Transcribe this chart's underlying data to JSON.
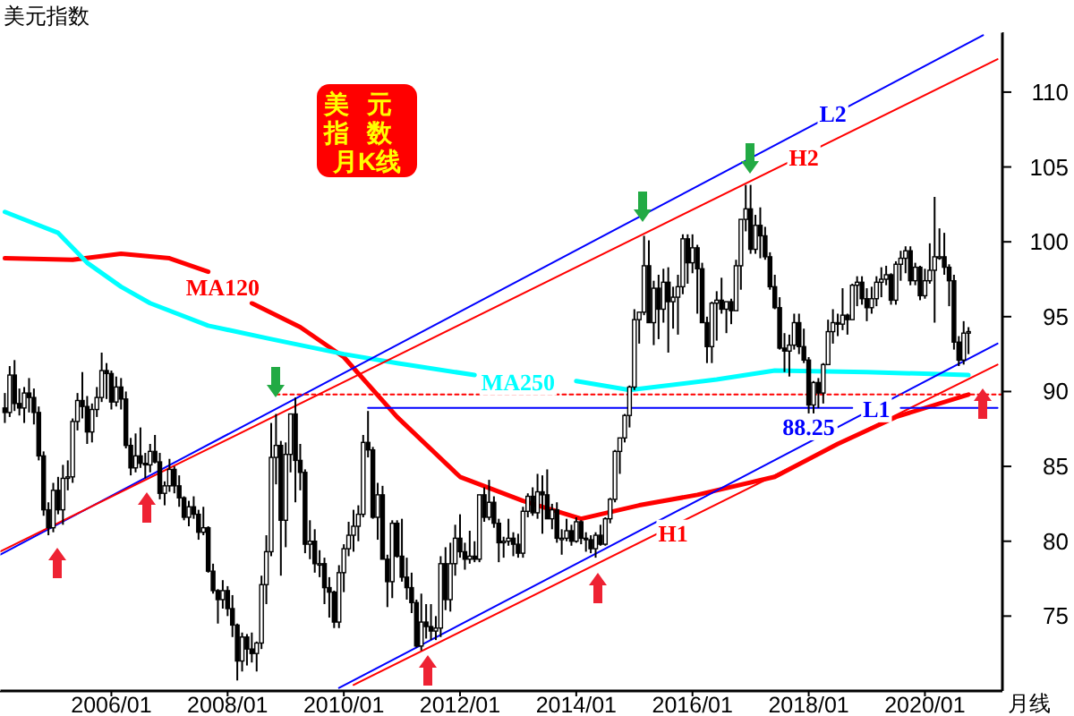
{
  "chart_data": {
    "type": "candlestick",
    "title": "美元指数",
    "annotations": [
      "美元",
      "指数",
      "月K线",
      "月线",
      {
        "text": "L2",
        "x": "2018-06",
        "y": 108.6
      },
      {
        "text": "H2",
        "x": "2017-12",
        "y": 105.7
      },
      {
        "text": "H1",
        "x": "2015-09",
        "y": 80.6
      },
      {
        "text": "L1",
        "x": "2019-03",
        "y": 88.9
      },
      {
        "text": "88.25",
        "x": "2018-01",
        "y": 87.7
      },
      {
        "text": "MA120",
        "x": "2007-12",
        "y": 97.0
      },
      {
        "text": "MA250",
        "x": "2013-01",
        "y": 90.7
      }
    ],
    "xlim": [
      "2004-02",
      "2021-05"
    ],
    "xticks": [
      {
        "value": "2006-01",
        "label": "2006/01"
      },
      {
        "value": "2008-01",
        "label": "2008/01"
      },
      {
        "value": "2010-01",
        "label": "2010/01"
      },
      {
        "value": "2012-01",
        "label": "2012/01"
      },
      {
        "value": "2014-01",
        "label": "2014/01"
      },
      {
        "value": "2016-01",
        "label": "2016/01"
      },
      {
        "value": "2018-01",
        "label": "2018/01"
      },
      {
        "value": "2020-01",
        "label": "2020/01"
      }
    ],
    "ylim": [
      70,
      114
    ],
    "yticks": [
      75,
      80,
      85,
      90,
      95,
      100,
      105,
      110
    ],
    "x": [
      "2004-03",
      "2004-04",
      "2004-05",
      "2004-06",
      "2004-07",
      "2004-08",
      "2004-09",
      "2004-10",
      "2004-11",
      "2004-12",
      "2005-01",
      "2005-02",
      "2005-03",
      "2005-04",
      "2005-05",
      "2005-06",
      "2005-07",
      "2005-08",
      "2005-09",
      "2005-10",
      "2005-11",
      "2005-12",
      "2006-01",
      "2006-02",
      "2006-03",
      "2006-04",
      "2006-05",
      "2006-06",
      "2006-07",
      "2006-08",
      "2006-09",
      "2006-10",
      "2006-11",
      "2006-12",
      "2007-01",
      "2007-02",
      "2007-03",
      "2007-04",
      "2007-05",
      "2007-06",
      "2007-07",
      "2007-08",
      "2007-09",
      "2007-10",
      "2007-11",
      "2007-12",
      "2008-01",
      "2008-02",
      "2008-03",
      "2008-04",
      "2008-05",
      "2008-06",
      "2008-07",
      "2008-08",
      "2008-09",
      "2008-10",
      "2008-11",
      "2008-12",
      "2009-01",
      "2009-02",
      "2009-03",
      "2009-04",
      "2009-05",
      "2009-06",
      "2009-07",
      "2009-08",
      "2009-09",
      "2009-10",
      "2009-11",
      "2009-12",
      "2010-01",
      "2010-02",
      "2010-03",
      "2010-04",
      "2010-05",
      "2010-06",
      "2010-07",
      "2010-08",
      "2010-09",
      "2010-10",
      "2010-11",
      "2010-12",
      "2011-01",
      "2011-02",
      "2011-03",
      "2011-04",
      "2011-05",
      "2011-06",
      "2011-07",
      "2011-08",
      "2011-09",
      "2011-10",
      "2011-11",
      "2011-12",
      "2012-01",
      "2012-02",
      "2012-03",
      "2012-04",
      "2012-05",
      "2012-06",
      "2012-07",
      "2012-08",
      "2012-09",
      "2012-10",
      "2012-11",
      "2012-12",
      "2013-01",
      "2013-02",
      "2013-03",
      "2013-04",
      "2013-05",
      "2013-06",
      "2013-07",
      "2013-08",
      "2013-09",
      "2013-10",
      "2013-11",
      "2013-12",
      "2014-01",
      "2014-02",
      "2014-03",
      "2014-04",
      "2014-05",
      "2014-06",
      "2014-07",
      "2014-08",
      "2014-09",
      "2014-10",
      "2014-11",
      "2014-12",
      "2015-01",
      "2015-02",
      "2015-03",
      "2015-04",
      "2015-05",
      "2015-06",
      "2015-07",
      "2015-08",
      "2015-09",
      "2015-10",
      "2015-11",
      "2015-12",
      "2016-01",
      "2016-02",
      "2016-03",
      "2016-04",
      "2016-05",
      "2016-06",
      "2016-07",
      "2016-08",
      "2016-09",
      "2016-10",
      "2016-11",
      "2016-12",
      "2017-01",
      "2017-02",
      "2017-03",
      "2017-04",
      "2017-05",
      "2017-06",
      "2017-07",
      "2017-08",
      "2017-09",
      "2017-10",
      "2017-11",
      "2017-12",
      "2018-01",
      "2018-02",
      "2018-03",
      "2018-04",
      "2018-05",
      "2018-06",
      "2018-07",
      "2018-08",
      "2018-09",
      "2018-10",
      "2018-11",
      "2018-12",
      "2019-01",
      "2019-02",
      "2019-03",
      "2019-04",
      "2019-05",
      "2019-06",
      "2019-07",
      "2019-08",
      "2019-09",
      "2019-10",
      "2019-11",
      "2019-12",
      "2020-01",
      "2020-02",
      "2020-03",
      "2020-04",
      "2020-05",
      "2020-06",
      "2020-07",
      "2020-08",
      "2020-09",
      "2020-10"
    ],
    "ohlc": [
      [
        88.9,
        89.9,
        87.9,
        88.6
      ],
      [
        88.6,
        91.7,
        88.3,
        91.1
      ],
      [
        91.1,
        92.1,
        88.7,
        89.2
      ],
      [
        89.2,
        90.2,
        88.4,
        88.9
      ],
      [
        88.9,
        90.3,
        87.9,
        89.9
      ],
      [
        89.9,
        90.9,
        88.6,
        89.6
      ],
      [
        89.6,
        90.2,
        87.8,
        88.6
      ],
      [
        88.6,
        89.0,
        85.4,
        85.7
      ],
      [
        85.7,
        86.0,
        81.7,
        82.1
      ],
      [
        82.1,
        82.6,
        80.4,
        80.9
      ],
      [
        80.9,
        83.9,
        80.6,
        83.4
      ],
      [
        83.4,
        84.3,
        81.8,
        82.1
      ],
      [
        82.1,
        85.1,
        81.1,
        84.2
      ],
      [
        84.2,
        85.4,
        83.4,
        84.3
      ],
      [
        84.3,
        88.2,
        83.9,
        88.0
      ],
      [
        88.0,
        89.9,
        87.4,
        89.4
      ],
      [
        89.4,
        91.3,
        88.2,
        89.0
      ],
      [
        89.0,
        89.7,
        86.5,
        87.3
      ],
      [
        87.3,
        89.2,
        86.6,
        88.8
      ],
      [
        88.8,
        90.3,
        88.3,
        89.6
      ],
      [
        89.6,
        92.6,
        89.3,
        91.4
      ],
      [
        91.4,
        91.9,
        89.5,
        91.2
      ],
      [
        91.2,
        91.4,
        88.8,
        89.3
      ],
      [
        89.3,
        91.0,
        89.0,
        90.3
      ],
      [
        90.3,
        90.9,
        88.8,
        89.5
      ],
      [
        89.5,
        90.0,
        86.2,
        86.4
      ],
      [
        86.4,
        86.9,
        84.4,
        84.9
      ],
      [
        84.9,
        87.2,
        84.6,
        85.7
      ],
      [
        85.7,
        87.6,
        84.9,
        85.2
      ],
      [
        85.2,
        85.9,
        84.2,
        85.1
      ],
      [
        85.1,
        86.5,
        84.6,
        86.0
      ],
      [
        86.0,
        87.1,
        85.2,
        85.3
      ],
      [
        85.3,
        85.9,
        82.8,
        83.2
      ],
      [
        83.2,
        84.0,
        82.4,
        83.7
      ],
      [
        83.7,
        85.5,
        83.3,
        84.8
      ],
      [
        84.8,
        85.0,
        83.2,
        83.7
      ],
      [
        83.7,
        84.4,
        82.3,
        82.9
      ],
      [
        82.9,
        83.0,
        81.4,
        81.6
      ],
      [
        81.6,
        82.7,
        81.0,
        82.3
      ],
      [
        82.3,
        83.0,
        81.5,
        81.8
      ],
      [
        81.8,
        82.1,
        80.1,
        80.6
      ],
      [
        80.6,
        82.3,
        80.4,
        80.9
      ],
      [
        80.9,
        81.0,
        77.9,
        78.0
      ],
      [
        78.0,
        78.5,
        76.5,
        76.7
      ],
      [
        76.7,
        76.8,
        74.5,
        76.1
      ],
      [
        76.1,
        77.4,
        75.5,
        76.7
      ],
      [
        76.7,
        77.0,
        75.0,
        75.5
      ],
      [
        75.5,
        76.4,
        73.6,
        74.4
      ],
      [
        74.4,
        74.5,
        70.7,
        72.0
      ],
      [
        72.0,
        73.9,
        71.3,
        73.6
      ],
      [
        73.6,
        73.8,
        71.7,
        72.8
      ],
      [
        72.8,
        73.9,
        71.9,
        72.5
      ],
      [
        72.5,
        73.3,
        71.3,
        73.2
      ],
      [
        73.2,
        77.7,
        72.8,
        77.1
      ],
      [
        77.1,
        80.4,
        75.8,
        79.3
      ],
      [
        79.3,
        87.9,
        79.0,
        85.6
      ],
      [
        85.6,
        88.5,
        83.8,
        86.4
      ],
      [
        86.4,
        86.7,
        77.7,
        81.4
      ],
      [
        81.4,
        86.6,
        79.6,
        85.8
      ],
      [
        85.8,
        88.5,
        84.6,
        88.5
      ],
      [
        88.5,
        89.6,
        82.6,
        85.4
      ],
      [
        85.4,
        86.5,
        83.4,
        84.6
      ],
      [
        84.6,
        84.8,
        79.2,
        79.8
      ],
      [
        79.8,
        81.4,
        78.8,
        80.0
      ],
      [
        80.0,
        80.8,
        77.9,
        78.5
      ],
      [
        78.5,
        79.4,
        77.6,
        78.5
      ],
      [
        78.5,
        78.9,
        75.8,
        76.9
      ],
      [
        76.9,
        77.6,
        74.9,
        76.6
      ],
      [
        76.6,
        76.7,
        74.2,
        74.6
      ],
      [
        74.6,
        78.4,
        74.2,
        77.9
      ],
      [
        77.9,
        79.8,
        76.6,
        79.5
      ],
      [
        79.5,
        81.3,
        79.0,
        80.4
      ],
      [
        80.4,
        82.1,
        79.3,
        81.0
      ],
      [
        81.0,
        82.4,
        80.0,
        81.8
      ],
      [
        81.8,
        87.1,
        81.6,
        86.6
      ],
      [
        86.6,
        88.7,
        85.6,
        86.1
      ],
      [
        86.1,
        86.3,
        81.5,
        81.6
      ],
      [
        81.6,
        83.9,
        80.1,
        83.1
      ],
      [
        83.1,
        83.7,
        78.8,
        78.8
      ],
      [
        78.8,
        79.1,
        75.6,
        77.3
      ],
      [
        77.3,
        81.4,
        76.2,
        81.2
      ],
      [
        81.2,
        81.4,
        78.9,
        79.0
      ],
      [
        79.0,
        81.5,
        77.3,
        77.6
      ],
      [
        77.6,
        78.9,
        76.1,
        76.9
      ],
      [
        76.9,
        77.9,
        75.2,
        75.9
      ],
      [
        75.9,
        76.1,
        72.9,
        73.0
      ],
      [
        73.0,
        76.5,
        72.7,
        74.6
      ],
      [
        74.6,
        75.8,
        73.5,
        74.3
      ],
      [
        74.3,
        75.8,
        73.4,
        74.0
      ],
      [
        74.0,
        75.0,
        73.4,
        74.2
      ],
      [
        74.2,
        79.0,
        73.6,
        78.5
      ],
      [
        78.5,
        79.6,
        75.4,
        76.1
      ],
      [
        76.1,
        79.9,
        75.3,
        78.5
      ],
      [
        78.5,
        81.1,
        77.7,
        80.2
      ],
      [
        80.2,
        81.8,
        78.9,
        79.3
      ],
      [
        79.3,
        79.9,
        78.1,
        78.8
      ],
      [
        78.8,
        80.7,
        78.5,
        79.0
      ],
      [
        79.0,
        80.0,
        78.6,
        78.8
      ],
      [
        78.8,
        83.1,
        78.6,
        83.1
      ],
      [
        83.1,
        83.6,
        81.3,
        81.6
      ],
      [
        81.6,
        84.1,
        81.4,
        82.6
      ],
      [
        82.6,
        83.0,
        80.9,
        81.2
      ],
      [
        81.2,
        81.5,
        78.6,
        79.9
      ],
      [
        79.9,
        80.3,
        78.9,
        80.0
      ],
      [
        80.0,
        81.5,
        79.7,
        80.2
      ],
      [
        80.2,
        80.6,
        79.0,
        79.8
      ],
      [
        79.8,
        80.5,
        78.9,
        79.2
      ],
      [
        79.2,
        82.3,
        78.9,
        82.0
      ],
      [
        82.0,
        83.2,
        81.6,
        83.0
      ],
      [
        83.0,
        83.6,
        81.7,
        81.9
      ],
      [
        81.9,
        84.5,
        81.5,
        83.3
      ],
      [
        83.3,
        84.4,
        80.5,
        83.1
      ],
      [
        83.1,
        84.8,
        81.5,
        81.5
      ],
      [
        81.5,
        82.5,
        80.8,
        82.1
      ],
      [
        82.1,
        82.6,
        79.9,
        80.2
      ],
      [
        80.2,
        80.8,
        79.1,
        80.2
      ],
      [
        80.2,
        81.5,
        80.0,
        80.7
      ],
      [
        80.7,
        81.1,
        79.7,
        80.0
      ],
      [
        80.0,
        81.6,
        79.9,
        81.3
      ],
      [
        81.3,
        81.4,
        79.8,
        80.2
      ],
      [
        80.2,
        80.6,
        79.3,
        80.1
      ],
      [
        80.1,
        80.4,
        79.2,
        79.5
      ],
      [
        79.5,
        80.6,
        78.9,
        80.4
      ],
      [
        80.4,
        81.1,
        79.7,
        79.8
      ],
      [
        79.8,
        81.6,
        79.7,
        81.5
      ],
      [
        81.5,
        82.9,
        81.2,
        82.8
      ],
      [
        82.8,
        86.1,
        82.6,
        86.0
      ],
      [
        86.0,
        86.9,
        84.5,
        86.9
      ],
      [
        86.9,
        88.5,
        86.6,
        88.4
      ],
      [
        88.4,
        90.4,
        87.6,
        90.3
      ],
      [
        90.3,
        95.5,
        90.1,
        94.8
      ],
      [
        94.8,
        95.3,
        93.2,
        95.3
      ],
      [
        95.3,
        100.4,
        95.1,
        98.4
      ],
      [
        98.4,
        100.1,
        94.6,
        94.6
      ],
      [
        94.6,
        97.4,
        93.1,
        96.9
      ],
      [
        96.9,
        97.8,
        93.5,
        95.5
      ],
      [
        95.5,
        98.2,
        94.6,
        97.3
      ],
      [
        97.3,
        98.3,
        92.6,
        96.0
      ],
      [
        96.0,
        97.0,
        94.2,
        96.3
      ],
      [
        96.3,
        97.8,
        93.8,
        97.0
      ],
      [
        97.0,
        100.5,
        96.5,
        100.2
      ],
      [
        100.2,
        100.5,
        97.2,
        98.6
      ],
      [
        98.6,
        100.5,
        97.9,
        99.6
      ],
      [
        99.6,
        99.8,
        95.2,
        98.2
      ],
      [
        98.2,
        98.6,
        94.6,
        94.6
      ],
      [
        94.6,
        95.0,
        91.9,
        93.0
      ],
      [
        93.0,
        96.0,
        91.9,
        95.9
      ],
      [
        95.9,
        96.7,
        93.4,
        96.1
      ],
      [
        96.1,
        97.6,
        95.2,
        95.5
      ],
      [
        95.5,
        96.0,
        93.9,
        96.0
      ],
      [
        96.0,
        96.2,
        94.5,
        95.4
      ],
      [
        95.4,
        98.8,
        95.4,
        98.4
      ],
      [
        98.4,
        101.5,
        96.8,
        101.5
      ],
      [
        101.5,
        103.8,
        100.7,
        102.2
      ],
      [
        102.2,
        103.8,
        99.2,
        99.5
      ],
      [
        99.5,
        101.8,
        99.2,
        101.1
      ],
      [
        101.1,
        102.3,
        98.9,
        100.4
      ],
      [
        100.4,
        101.0,
        98.8,
        99.0
      ],
      [
        99.0,
        99.3,
        96.8,
        97.0
      ],
      [
        97.0,
        97.8,
        95.5,
        95.6
      ],
      [
        95.6,
        96.3,
        92.8,
        92.9
      ],
      [
        92.9,
        93.9,
        91.3,
        92.7
      ],
      [
        92.7,
        93.8,
        91.0,
        93.1
      ],
      [
        93.1,
        95.2,
        92.8,
        94.6
      ],
      [
        94.6,
        95.2,
        92.5,
        93.0
      ],
      [
        93.0,
        94.2,
        91.9,
        92.1
      ],
      [
        92.1,
        92.3,
        88.4,
        89.1
      ],
      [
        89.1,
        90.7,
        88.25,
        90.6
      ],
      [
        90.6,
        90.9,
        88.9,
        89.9
      ],
      [
        89.9,
        91.9,
        89.2,
        91.8
      ],
      [
        91.8,
        94.8,
        91.8,
        94.0
      ],
      [
        94.0,
        95.5,
        93.2,
        94.6
      ],
      [
        94.6,
        95.2,
        93.7,
        94.5
      ],
      [
        94.5,
        96.9,
        94.1,
        95.1
      ],
      [
        95.1,
        95.2,
        93.8,
        94.8
      ],
      [
        94.8,
        97.2,
        94.8,
        97.1
      ],
      [
        97.1,
        97.7,
        95.7,
        97.3
      ],
      [
        97.3,
        97.7,
        95.8,
        96.2
      ],
      [
        96.2,
        96.9,
        94.7,
        95.6
      ],
      [
        95.6,
        97.0,
        95.2,
        96.2
      ],
      [
        96.2,
        97.7,
        95.7,
        97.3
      ],
      [
        97.3,
        98.3,
        96.3,
        97.5
      ],
      [
        97.5,
        98.4,
        97.1,
        97.8
      ],
      [
        97.8,
        97.9,
        95.8,
        96.1
      ],
      [
        96.1,
        98.7,
        95.8,
        98.5
      ],
      [
        98.5,
        99.4,
        97.4,
        98.9
      ],
      [
        98.9,
        99.7,
        97.9,
        99.4
      ],
      [
        99.4,
        99.7,
        97.1,
        97.4
      ],
      [
        97.4,
        98.6,
        97.1,
        98.3
      ],
      [
        98.3,
        98.4,
        96.1,
        96.4
      ],
      [
        96.4,
        98.2,
        96.2,
        97.4
      ],
      [
        97.4,
        99.9,
        97.2,
        98.1
      ],
      [
        98.1,
        103.0,
        94.6,
        99.0
      ],
      [
        99.0,
        100.9,
        98.8,
        99.0
      ],
      [
        99.0,
        100.6,
        97.8,
        98.3
      ],
      [
        98.3,
        98.5,
        95.7,
        97.4
      ],
      [
        97.4,
        97.8,
        92.8,
        93.3
      ],
      [
        93.3,
        93.7,
        91.7,
        92.1
      ],
      [
        92.1,
        94.7,
        91.8,
        93.9
      ],
      [
        93.9,
        94.3,
        92.5,
        94.0
      ]
    ],
    "series": [
      {
        "type": "line",
        "color": "#ff0000",
        "x": [
          "2004-03",
          "2005-05",
          "2006-03",
          "2007-01",
          "2007-09",
          "2007-12",
          "2008-06",
          "2009-04",
          "2010-01",
          "2010-12",
          "2012-01",
          "2013-02",
          "2014-02",
          "2015-02",
          "2016-02",
          "2017-06",
          "2018-07",
          "2019-07",
          "2020-10"
        ],
        "values": [
          98.9,
          98.8,
          99.2,
          98.9,
          98.0,
          null,
          95.9,
          94.3,
          92.3,
          88.3,
          84.3,
          82.7,
          81.5,
          82.4,
          83.1,
          84.3,
          86.5,
          88.3,
          89.8
        ]
      },
      {
        "type": "line",
        "color": "#00ffff",
        "x": [
          "2004-03",
          "2005-02",
          "2005-08",
          "2006-03",
          "2006-09",
          "2007-09",
          "2008-10",
          "2010-01",
          "2010-12",
          "2012-04",
          "2013-04",
          "2014-01",
          "2014-12",
          "2016-06",
          "2017-06",
          "2019-01",
          "2020-10"
        ],
        "values": [
          102.0,
          100.6,
          98.6,
          97.0,
          95.9,
          94.4,
          93.5,
          92.5,
          91.9,
          91.1,
          null,
          90.7,
          90.1,
          90.8,
          91.4,
          91.3,
          91.1
        ]
      },
      {
        "type": "line",
        "color": "#0000ff",
        "x": [
          "2004-02",
          "2021-01"
        ],
        "values": [
          79.1,
          113.8
        ]
      },
      {
        "type": "line",
        "color": "#ff0000",
        "x": [
          "2004-02",
          "2021-04"
        ],
        "values": [
          79.3,
          112.2
        ]
      },
      {
        "type": "line",
        "color": "#0000ff",
        "x": [
          "2009-12",
          "2021-04"
        ],
        "values": [
          70.2,
          93.2
        ]
      },
      {
        "type": "line",
        "color": "#ff0000",
        "x": [
          "2010-03",
          "2021-04"
        ],
        "values": [
          70.4,
          91.8
        ]
      },
      {
        "type": "line",
        "color": "#ff0000",
        "line_style": "dotted",
        "x": [
          "2008-11",
          "2021-05"
        ],
        "values": [
          89.8,
          89.8
        ]
      },
      {
        "type": "line",
        "color": "#0000ff",
        "x": [
          "2010-06",
          "2018-10",
          "2019-01",
          "2019-08",
          "2021-04"
        ],
        "values": [
          88.9,
          88.9,
          null,
          88.9,
          88.9
        ]
      }
    ]
  }
}
